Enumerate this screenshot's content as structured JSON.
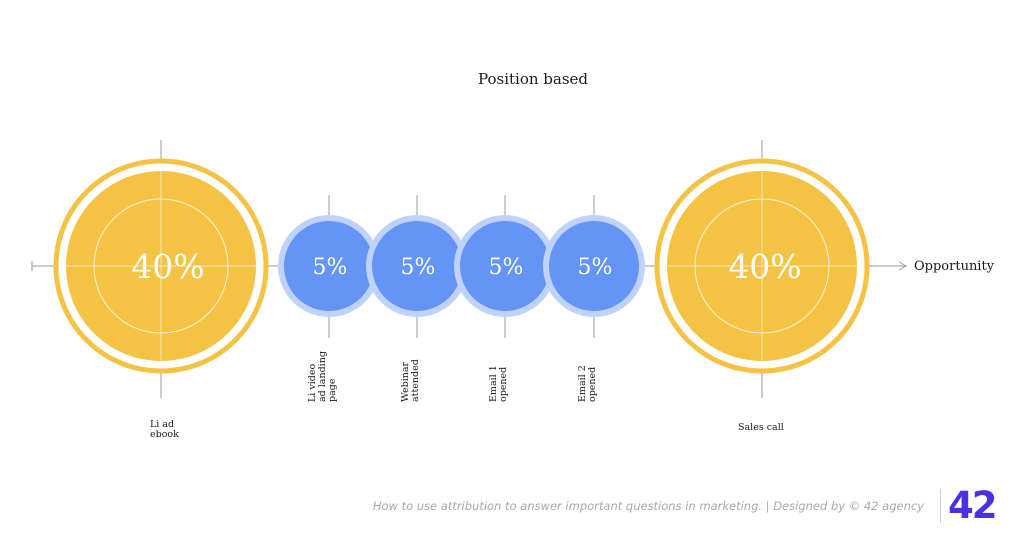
{
  "title": "Position based",
  "axis_label": "Opportunity",
  "colors": {
    "gold": "#f4c344",
    "blue": "#6594f7",
    "blue_ring": "#bfd2fb",
    "axis": "#9a9a9a",
    "logo": "#4a30e6"
  },
  "touchpoints": [
    {
      "percent": "40%",
      "label_lines": [
        "Li ad",
        "ebook"
      ],
      "style": "gold"
    },
    {
      "percent": "5%",
      "label_lines": [
        "Li video",
        "ad landing",
        "page"
      ],
      "style": "blue"
    },
    {
      "percent": "5%",
      "label_lines": [
        "Webinar",
        "attended"
      ],
      "style": "blue"
    },
    {
      "percent": "5%",
      "label_lines": [
        "Email 1",
        "opened"
      ],
      "style": "blue"
    },
    {
      "percent": "5%",
      "label_lines": [
        "Email 2",
        "opened"
      ],
      "style": "blue"
    },
    {
      "percent": "40%",
      "label_lines": [
        "Sales call"
      ],
      "style": "gold"
    }
  ],
  "footer": "How to use attribution to answer important questions in marketing. | Designed by © 42 agency",
  "logo": "42"
}
